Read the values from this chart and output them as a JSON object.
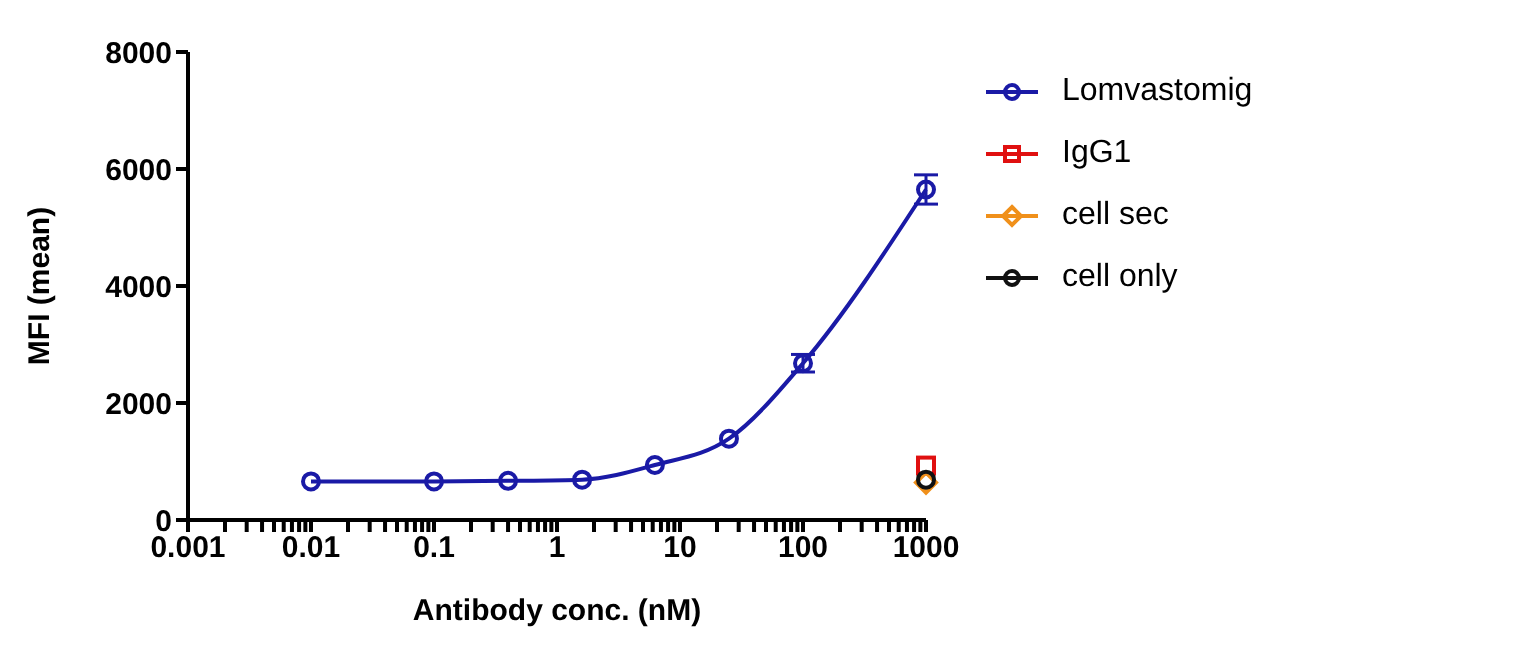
{
  "chart_data": {
    "type": "line",
    "xlabel": "Antibody conc. (nM)",
    "ylabel": "MFI (mean)",
    "log": "x",
    "xlim": [
      0.001,
      1000
    ],
    "xticks": [
      0.001,
      {
        "value": 0.002,
        "label": null
      },
      {
        "value": 0.003,
        "label": null
      },
      {
        "value": 0.004,
        "label": null
      },
      {
        "value": 0.005,
        "label": null
      },
      {
        "value": 0.006,
        "label": null
      },
      {
        "value": 0.007,
        "label": null
      },
      {
        "value": 0.008,
        "label": null
      },
      {
        "value": 0.009,
        "label": null
      },
      0.01,
      {
        "value": 0.02,
        "label": null
      },
      {
        "value": 0.03,
        "label": null
      },
      {
        "value": 0.04,
        "label": null
      },
      {
        "value": 0.05,
        "label": null
      },
      {
        "value": 0.06,
        "label": null
      },
      {
        "value": 0.07,
        "label": null
      },
      {
        "value": 0.08,
        "label": null
      },
      {
        "value": 0.09,
        "label": null
      },
      0.1,
      {
        "value": 0.2,
        "label": null
      },
      {
        "value": 0.3,
        "label": null
      },
      {
        "value": 0.4,
        "label": null
      },
      {
        "value": 0.5,
        "label": null
      },
      {
        "value": 0.6,
        "label": null
      },
      {
        "value": 0.7,
        "label": null
      },
      {
        "value": 0.8,
        "label": null
      },
      {
        "value": 0.9,
        "label": null
      },
      1,
      {
        "value": 2,
        "label": null
      },
      {
        "value": 3,
        "label": null
      },
      {
        "value": 4,
        "label": null
      },
      {
        "value": 5,
        "label": null
      },
      {
        "value": 6,
        "label": null
      },
      {
        "value": 7,
        "label": null
      },
      {
        "value": 8,
        "label": null
      },
      {
        "value": 9,
        "label": null
      },
      10,
      {
        "value": 20,
        "label": null
      },
      {
        "value": 30,
        "label": null
      },
      {
        "value": 40,
        "label": null
      },
      {
        "value": 50,
        "label": null
      },
      {
        "value": 60,
        "label": null
      },
      {
        "value": 70,
        "label": null
      },
      {
        "value": 80,
        "label": null
      },
      {
        "value": 90,
        "label": null
      },
      100,
      {
        "value": 200,
        "label": null
      },
      {
        "value": 300,
        "label": null
      },
      {
        "value": 400,
        "label": null
      },
      {
        "value": 500,
        "label": null
      },
      {
        "value": 600,
        "label": null
      },
      {
        "value": 700,
        "label": null
      },
      {
        "value": 800,
        "label": null
      },
      {
        "value": 900,
        "label": null
      },
      1000
    ],
    "ylim": [
      0,
      8000
    ],
    "yticks": [
      0,
      2000,
      4000,
      6000,
      8000
    ],
    "legend": "top right",
    "series": [
      {
        "name": "Lomvastomig",
        "color": "#1a1aa6",
        "marker": "circle",
        "x": [
          0.01,
          0.1,
          0.4,
          1.6,
          6.25,
          25,
          100,
          1000
        ],
        "values": [
          660,
          660,
          670,
          690,
          940,
          1390,
          2680,
          5650
        ],
        "errors": [
          null,
          null,
          null,
          null,
          null,
          null,
          150,
          250
        ]
      },
      {
        "name": "IgG1",
        "color": "#e01010",
        "marker": "square",
        "x": [
          1000
        ],
        "values": [
          930
        ]
      },
      {
        "name": "cell sec",
        "color": "#f0901a",
        "marker": "diamond",
        "x": [
          1000
        ],
        "values": [
          640
        ]
      },
      {
        "name": "cell only",
        "color": "#111111",
        "marker": "circle",
        "x": [
          1000
        ],
        "values": [
          690
        ]
      }
    ]
  }
}
